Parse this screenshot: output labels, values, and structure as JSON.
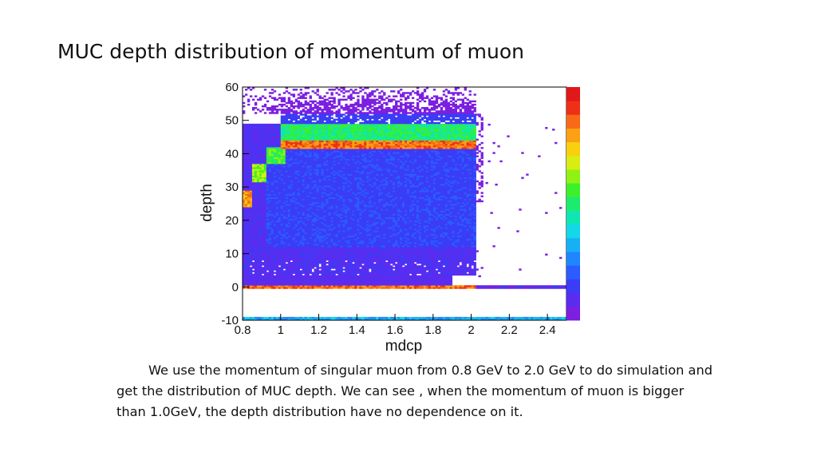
{
  "slide": {
    "title": "MUC depth distribution of momentum of muon",
    "caption": "We use the momentum of singular muon from 0.8 GeV to 2.0 GeV to do simulation and get the distribution of MUC depth. We can see , when the momentum of muon is bigger than 1.0GeV, the depth distribution have no dependence on it."
  },
  "chart_data": {
    "type": "heatmap",
    "title": "",
    "xlabel": "mdcp",
    "ylabel": "depth",
    "xlim": [
      0.8,
      2.5
    ],
    "ylim": [
      -10,
      60
    ],
    "x_ticks": [
      "0.8",
      "1",
      "1.2",
      "1.4",
      "1.6",
      "1.8",
      "2",
      "2.2",
      "2.4"
    ],
    "y_ticks": [
      "60",
      "50",
      "40",
      "30",
      "20",
      "10",
      "0",
      "-10"
    ],
    "colorbar": true,
    "palette": [
      "#7b1fe0",
      "#5a2cf0",
      "#3a3cf6",
      "#2a5cff",
      "#1f86ff",
      "#18b0f5",
      "#12d8e8",
      "#10e6b4",
      "#1cec6e",
      "#3cf02c",
      "#90f214",
      "#d8ee12",
      "#f8d010",
      "#fca014",
      "#f86a16",
      "#ee3018",
      "#e01818"
    ],
    "bands": [
      {
        "xmin": 0.8,
        "xmax": 0.855,
        "ymin": 24,
        "ymax": 29,
        "level": 13
      },
      {
        "xmin": 0.85,
        "xmax": 0.93,
        "ymin": 31.5,
        "ymax": 37,
        "level": 10
      },
      {
        "xmin": 0.93,
        "xmax": 1.02,
        "ymin": 37,
        "ymax": 42,
        "level": 9
      },
      {
        "xmin": 1.0,
        "xmax": 2.02,
        "ymin": 41.5,
        "ymax": 44,
        "level": 14
      },
      {
        "xmin": 1.0,
        "xmax": 2.02,
        "ymin": 44,
        "ymax": 49,
        "level": 8
      },
      {
        "xmin": 0.8,
        "xmax": 2.02,
        "ymin": -0.5,
        "ymax": 0.5,
        "level": 14
      },
      {
        "xmin": 2.02,
        "xmax": 2.5,
        "ymin": -0.5,
        "ymax": 0.5,
        "level": 1
      },
      {
        "xmin": 0.8,
        "xmax": 2.5,
        "ymin": -10,
        "ymax": -9,
        "level": 5
      }
    ]
  }
}
